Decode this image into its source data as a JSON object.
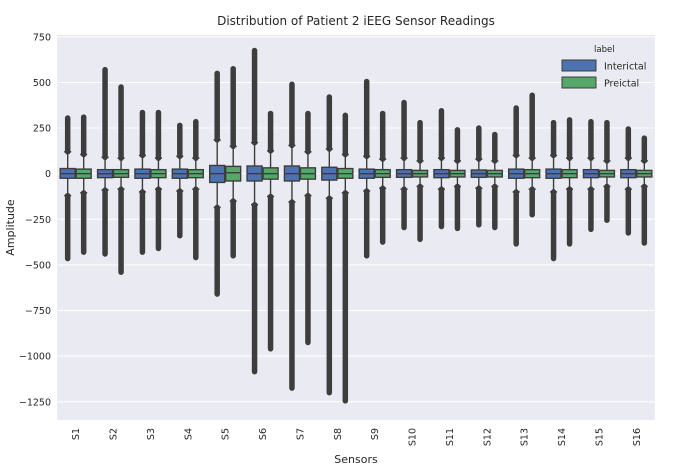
{
  "chart_data": {
    "type": "box",
    "title": "Distribution of Patient 2 iEEG Sensor Readings",
    "xlabel": "Sensors",
    "ylabel": "Amplitude",
    "ylim": [
      -1350,
      760
    ],
    "yticks": [
      750,
      500,
      250,
      0,
      -250,
      -500,
      -750,
      -1000,
      -1250
    ],
    "ytick_labels": [
      "750",
      "500",
      "250",
      "0",
      "−250",
      "−500",
      "−750",
      "−1000",
      "−1250"
    ],
    "grid": true,
    "legend_position": "top-right",
    "legend_title": "label",
    "categories": [
      "S1",
      "S2",
      "S3",
      "S4",
      "S5",
      "S6",
      "S7",
      "S8",
      "S9",
      "S10",
      "S11",
      "S12",
      "S13",
      "S14",
      "S15",
      "S16"
    ],
    "series": [
      {
        "name": "Interictal",
        "color": "#4c72b0",
        "boxes": [
          {
            "q1": -25,
            "median": 0,
            "q3": 28,
            "whisker_low": -120,
            "whisker_high": 120,
            "outlier_min": -465,
            "outlier_max": 305
          },
          {
            "q1": -22,
            "median": 0,
            "q3": 22,
            "whisker_low": -90,
            "whisker_high": 90,
            "outlier_min": -440,
            "outlier_max": 570
          },
          {
            "q1": -25,
            "median": 0,
            "q3": 25,
            "whisker_low": -100,
            "whisker_high": 100,
            "outlier_min": -430,
            "outlier_max": 335
          },
          {
            "q1": -25,
            "median": 0,
            "q3": 25,
            "whisker_low": -95,
            "whisker_high": 95,
            "outlier_min": -340,
            "outlier_max": 265
          },
          {
            "q1": -48,
            "median": 0,
            "q3": 45,
            "whisker_low": -185,
            "whisker_high": 185,
            "outlier_min": -660,
            "outlier_max": 550
          },
          {
            "q1": -40,
            "median": 0,
            "q3": 42,
            "whisker_low": -170,
            "whisker_high": 170,
            "outlier_min": -1085,
            "outlier_max": 675
          },
          {
            "q1": -40,
            "median": 0,
            "q3": 42,
            "whisker_low": -155,
            "whisker_high": 155,
            "outlier_min": -1175,
            "outlier_max": 490
          },
          {
            "q1": -35,
            "median": 0,
            "q3": 35,
            "whisker_low": -135,
            "whisker_high": 135,
            "outlier_min": -1200,
            "outlier_max": 420
          },
          {
            "q1": -25,
            "median": 0,
            "q3": 25,
            "whisker_low": -95,
            "whisker_high": 95,
            "outlier_min": -450,
            "outlier_max": 505
          },
          {
            "q1": -20,
            "median": 0,
            "q3": 22,
            "whisker_low": -85,
            "whisker_high": 85,
            "outlier_min": -295,
            "outlier_max": 390
          },
          {
            "q1": -22,
            "median": 0,
            "q3": 22,
            "whisker_low": -85,
            "whisker_high": 85,
            "outlier_min": -290,
            "outlier_max": 345
          },
          {
            "q1": -20,
            "median": 0,
            "q3": 20,
            "whisker_low": -80,
            "whisker_high": 80,
            "outlier_min": -280,
            "outlier_max": 250
          },
          {
            "q1": -25,
            "median": 0,
            "q3": 25,
            "whisker_low": -100,
            "whisker_high": 100,
            "outlier_min": -385,
            "outlier_max": 360
          },
          {
            "q1": -25,
            "median": 0,
            "q3": 25,
            "whisker_low": -100,
            "whisker_high": 100,
            "outlier_min": -465,
            "outlier_max": 280
          },
          {
            "q1": -22,
            "median": 0,
            "q3": 22,
            "whisker_low": -85,
            "whisker_high": 85,
            "outlier_min": -305,
            "outlier_max": 285
          },
          {
            "q1": -22,
            "median": 0,
            "q3": 22,
            "whisker_low": -85,
            "whisker_high": 85,
            "outlier_min": -325,
            "outlier_max": 245
          }
        ]
      },
      {
        "name": "Preictal",
        "color": "#55a868",
        "boxes": [
          {
            "q1": -25,
            "median": 0,
            "q3": 25,
            "whisker_low": -105,
            "whisker_high": 105,
            "outlier_min": -430,
            "outlier_max": 310
          },
          {
            "q1": -20,
            "median": 0,
            "q3": 22,
            "whisker_low": -85,
            "whisker_high": 85,
            "outlier_min": -540,
            "outlier_max": 475
          },
          {
            "q1": -22,
            "median": 0,
            "q3": 22,
            "whisker_low": -85,
            "whisker_high": 85,
            "outlier_min": -410,
            "outlier_max": 335
          },
          {
            "q1": -22,
            "median": 0,
            "q3": 22,
            "whisker_low": -85,
            "whisker_high": 85,
            "outlier_min": -460,
            "outlier_max": 285
          },
          {
            "q1": -40,
            "median": 5,
            "q3": 40,
            "whisker_low": -150,
            "whisker_high": 150,
            "outlier_min": -450,
            "outlier_max": 575
          },
          {
            "q1": -30,
            "median": 0,
            "q3": 32,
            "whisker_low": -125,
            "whisker_high": 125,
            "outlier_min": -960,
            "outlier_max": 330
          },
          {
            "q1": -30,
            "median": 0,
            "q3": 32,
            "whisker_low": -120,
            "whisker_high": 120,
            "outlier_min": -925,
            "outlier_max": 330
          },
          {
            "q1": -25,
            "median": 0,
            "q3": 28,
            "whisker_low": -105,
            "whisker_high": 105,
            "outlier_min": -1245,
            "outlier_max": 320
          },
          {
            "q1": -20,
            "median": 0,
            "q3": 22,
            "whisker_low": -80,
            "whisker_high": 80,
            "outlier_min": -375,
            "outlier_max": 330
          },
          {
            "q1": -18,
            "median": 0,
            "q3": 18,
            "whisker_low": -70,
            "whisker_high": 70,
            "outlier_min": -360,
            "outlier_max": 280
          },
          {
            "q1": -18,
            "median": 0,
            "q3": 18,
            "whisker_low": -70,
            "whisker_high": 70,
            "outlier_min": -300,
            "outlier_max": 240
          },
          {
            "q1": -18,
            "median": 0,
            "q3": 18,
            "whisker_low": -70,
            "whisker_high": 70,
            "outlier_min": -295,
            "outlier_max": 215
          },
          {
            "q1": -22,
            "median": 0,
            "q3": 22,
            "whisker_low": -85,
            "whisker_high": 85,
            "outlier_min": -225,
            "outlier_max": 430
          },
          {
            "q1": -22,
            "median": 0,
            "q3": 22,
            "whisker_low": -85,
            "whisker_high": 85,
            "outlier_min": -385,
            "outlier_max": 295
          },
          {
            "q1": -18,
            "median": 0,
            "q3": 18,
            "whisker_low": -70,
            "whisker_high": 70,
            "outlier_min": -255,
            "outlier_max": 280
          },
          {
            "q1": -18,
            "median": 0,
            "q3": 18,
            "whisker_low": -70,
            "whisker_high": 70,
            "outlier_min": -380,
            "outlier_max": 195
          }
        ]
      }
    ]
  }
}
